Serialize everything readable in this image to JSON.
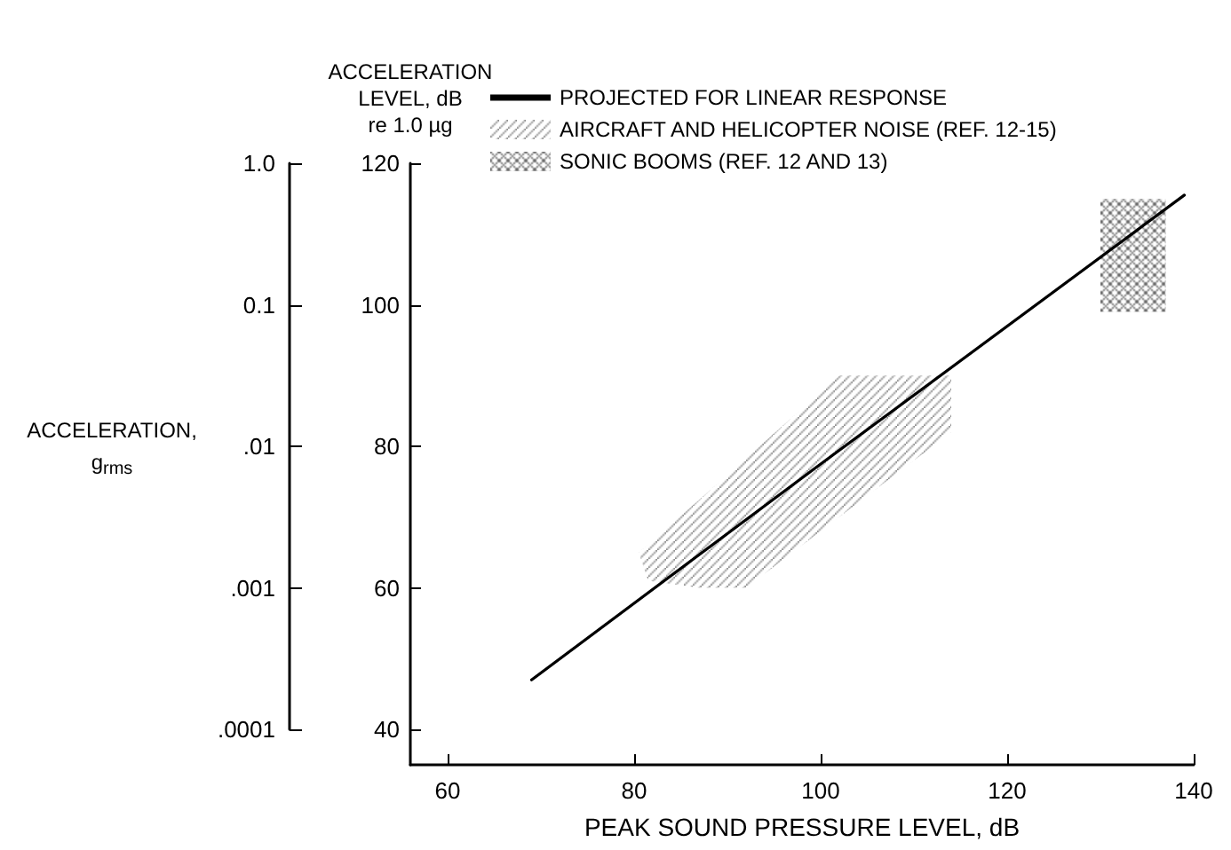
{
  "chart_data": {
    "type": "line",
    "xlabel": "PEAK SOUND PRESSURE LEVEL, dB",
    "ylabel": "ACCELERATION\nLEVEL, dB\nre 1.0 µg",
    "y2label": "ACCELERATION,\ng$_{rms}$",
    "xlim": [
      56,
      140
    ],
    "xticks": [
      60,
      80,
      100,
      120,
      140
    ],
    "ylim": [
      35,
      120
    ],
    "yticks": [
      40,
      60,
      80,
      100,
      120
    ],
    "y2lim": [
      0.0001,
      1
    ],
    "y2ticks": [
      {
        "value": 1,
        "label": "1.0"
      },
      {
        "value": 0.1,
        "label": "0.1"
      },
      {
        "value": 0.01,
        "label": ".01"
      },
      {
        "value": 0.001,
        "label": ".001"
      },
      {
        "value": 0.0001,
        "label": ".0001"
      }
    ],
    "log": "y2",
    "grid": false,
    "legend": "top left",
    "series": [
      {
        "name": "PROJECTED FOR LINEAR RESPONSE",
        "color": "#000000",
        "x": [
          69,
          100,
          139
        ],
        "values": [
          47,
          77.5,
          115.5
        ],
        "marker": "none",
        "line_style": "solid"
      },
      {
        "name": "AIRCRAFT AND HELICOPTER NOISE (REF. 12-15)",
        "type": "area",
        "color": "#8c8c8c",
        "x": [
          80.5,
          87,
          102,
          114,
          114,
          92,
          87,
          81.5
        ],
        "values": [
          65,
          72.5,
          90,
          90,
          82,
          60,
          60,
          61
        ]
      },
      {
        "name": "SONIC BOOMS (REF. 12 AND 13)",
        "type": "area",
        "color": "#6e6e6e",
        "x": [
          130,
          137,
          137,
          130
        ],
        "values": [
          115,
          115,
          99,
          99
        ]
      }
    ]
  }
}
